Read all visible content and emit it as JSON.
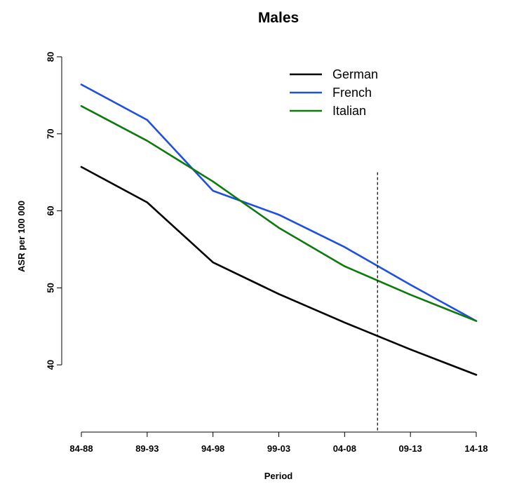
{
  "chart_data": {
    "type": "line",
    "title": "Males",
    "xlabel": "Period",
    "ylabel": "ASR per 100 000",
    "categories": [
      "84-88",
      "89-93",
      "94-98",
      "99-03",
      "04-08",
      "09-13",
      "14-18"
    ],
    "yticks": [
      40,
      50,
      60,
      70,
      80
    ],
    "ylim": [
      32,
      81
    ],
    "grid": false,
    "legend_position": "top-right",
    "series": [
      {
        "name": "German",
        "color": "#000000",
        "values": [
          65.7,
          61.1,
          53.3,
          49.2,
          45.5,
          42.0,
          38.7
        ]
      },
      {
        "name": "French",
        "color": "#1f4fe0",
        "values": [
          76.4,
          71.8,
          62.6,
          59.5,
          55.3,
          50.4,
          45.7
        ]
      },
      {
        "name": "Italian",
        "color": "#0e7a0e",
        "values": [
          73.6,
          69.1,
          63.8,
          57.8,
          52.8,
          49.1,
          45.7
        ]
      }
    ],
    "vertical_line": {
      "x_between": [
        "04-08",
        "09-13"
      ],
      "fraction": 0.5,
      "y_top": 65,
      "style": "dashed"
    }
  }
}
